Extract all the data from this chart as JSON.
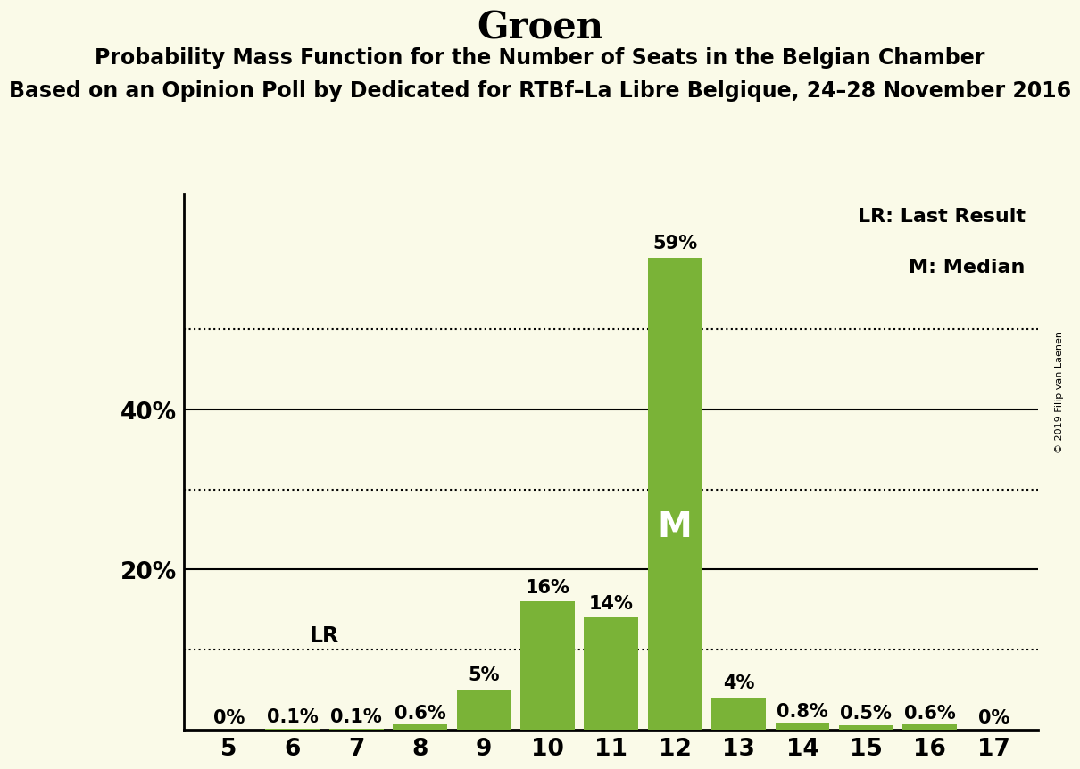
{
  "title": "Groen",
  "subtitle1": "Probability Mass Function for the Number of Seats in the Belgian Chamber",
  "subtitle2": "Based on an Opinion Poll by Dedicated for RTBf–La Libre Belgique, 24–28 November 2016",
  "copyright": "© 2019 Filip van Laenen",
  "seats": [
    5,
    6,
    7,
    8,
    9,
    10,
    11,
    12,
    13,
    14,
    15,
    16,
    17
  ],
  "probabilities": [
    0.0,
    0.001,
    0.001,
    0.006,
    0.05,
    0.16,
    0.14,
    0.59,
    0.04,
    0.008,
    0.005,
    0.006,
    0.0
  ],
  "bar_labels": [
    "0%",
    "0.1%",
    "0.1%",
    "0.6%",
    "5%",
    "16%",
    "14%",
    "59%",
    "4%",
    "0.8%",
    "0.5%",
    "0.6%",
    "0%"
  ],
  "bar_color": "#7ab337",
  "last_result_seat": 6,
  "median_seat": 12,
  "lr_label": "LR",
  "median_label": "M",
  "legend_lr": "LR: Last Result",
  "legend_m": "M: Median",
  "background_color": "#fafae8",
  "ylim_max": 0.67,
  "ytick_positions": [
    0.2,
    0.4
  ],
  "ytick_labels": [
    "20%",
    "40%"
  ],
  "dotted_lines": [
    0.1,
    0.3,
    0.5
  ],
  "solid_lines": [
    0.2,
    0.4
  ],
  "title_fontsize": 30,
  "subtitle1_fontsize": 17,
  "subtitle2_fontsize": 17,
  "bar_label_fontsize": 15,
  "axis_tick_fontsize": 19,
  "ylabel_fontsize": 19,
  "legend_fontsize": 16,
  "median_fontsize": 28,
  "lr_fontsize": 17,
  "copyright_fontsize": 8
}
